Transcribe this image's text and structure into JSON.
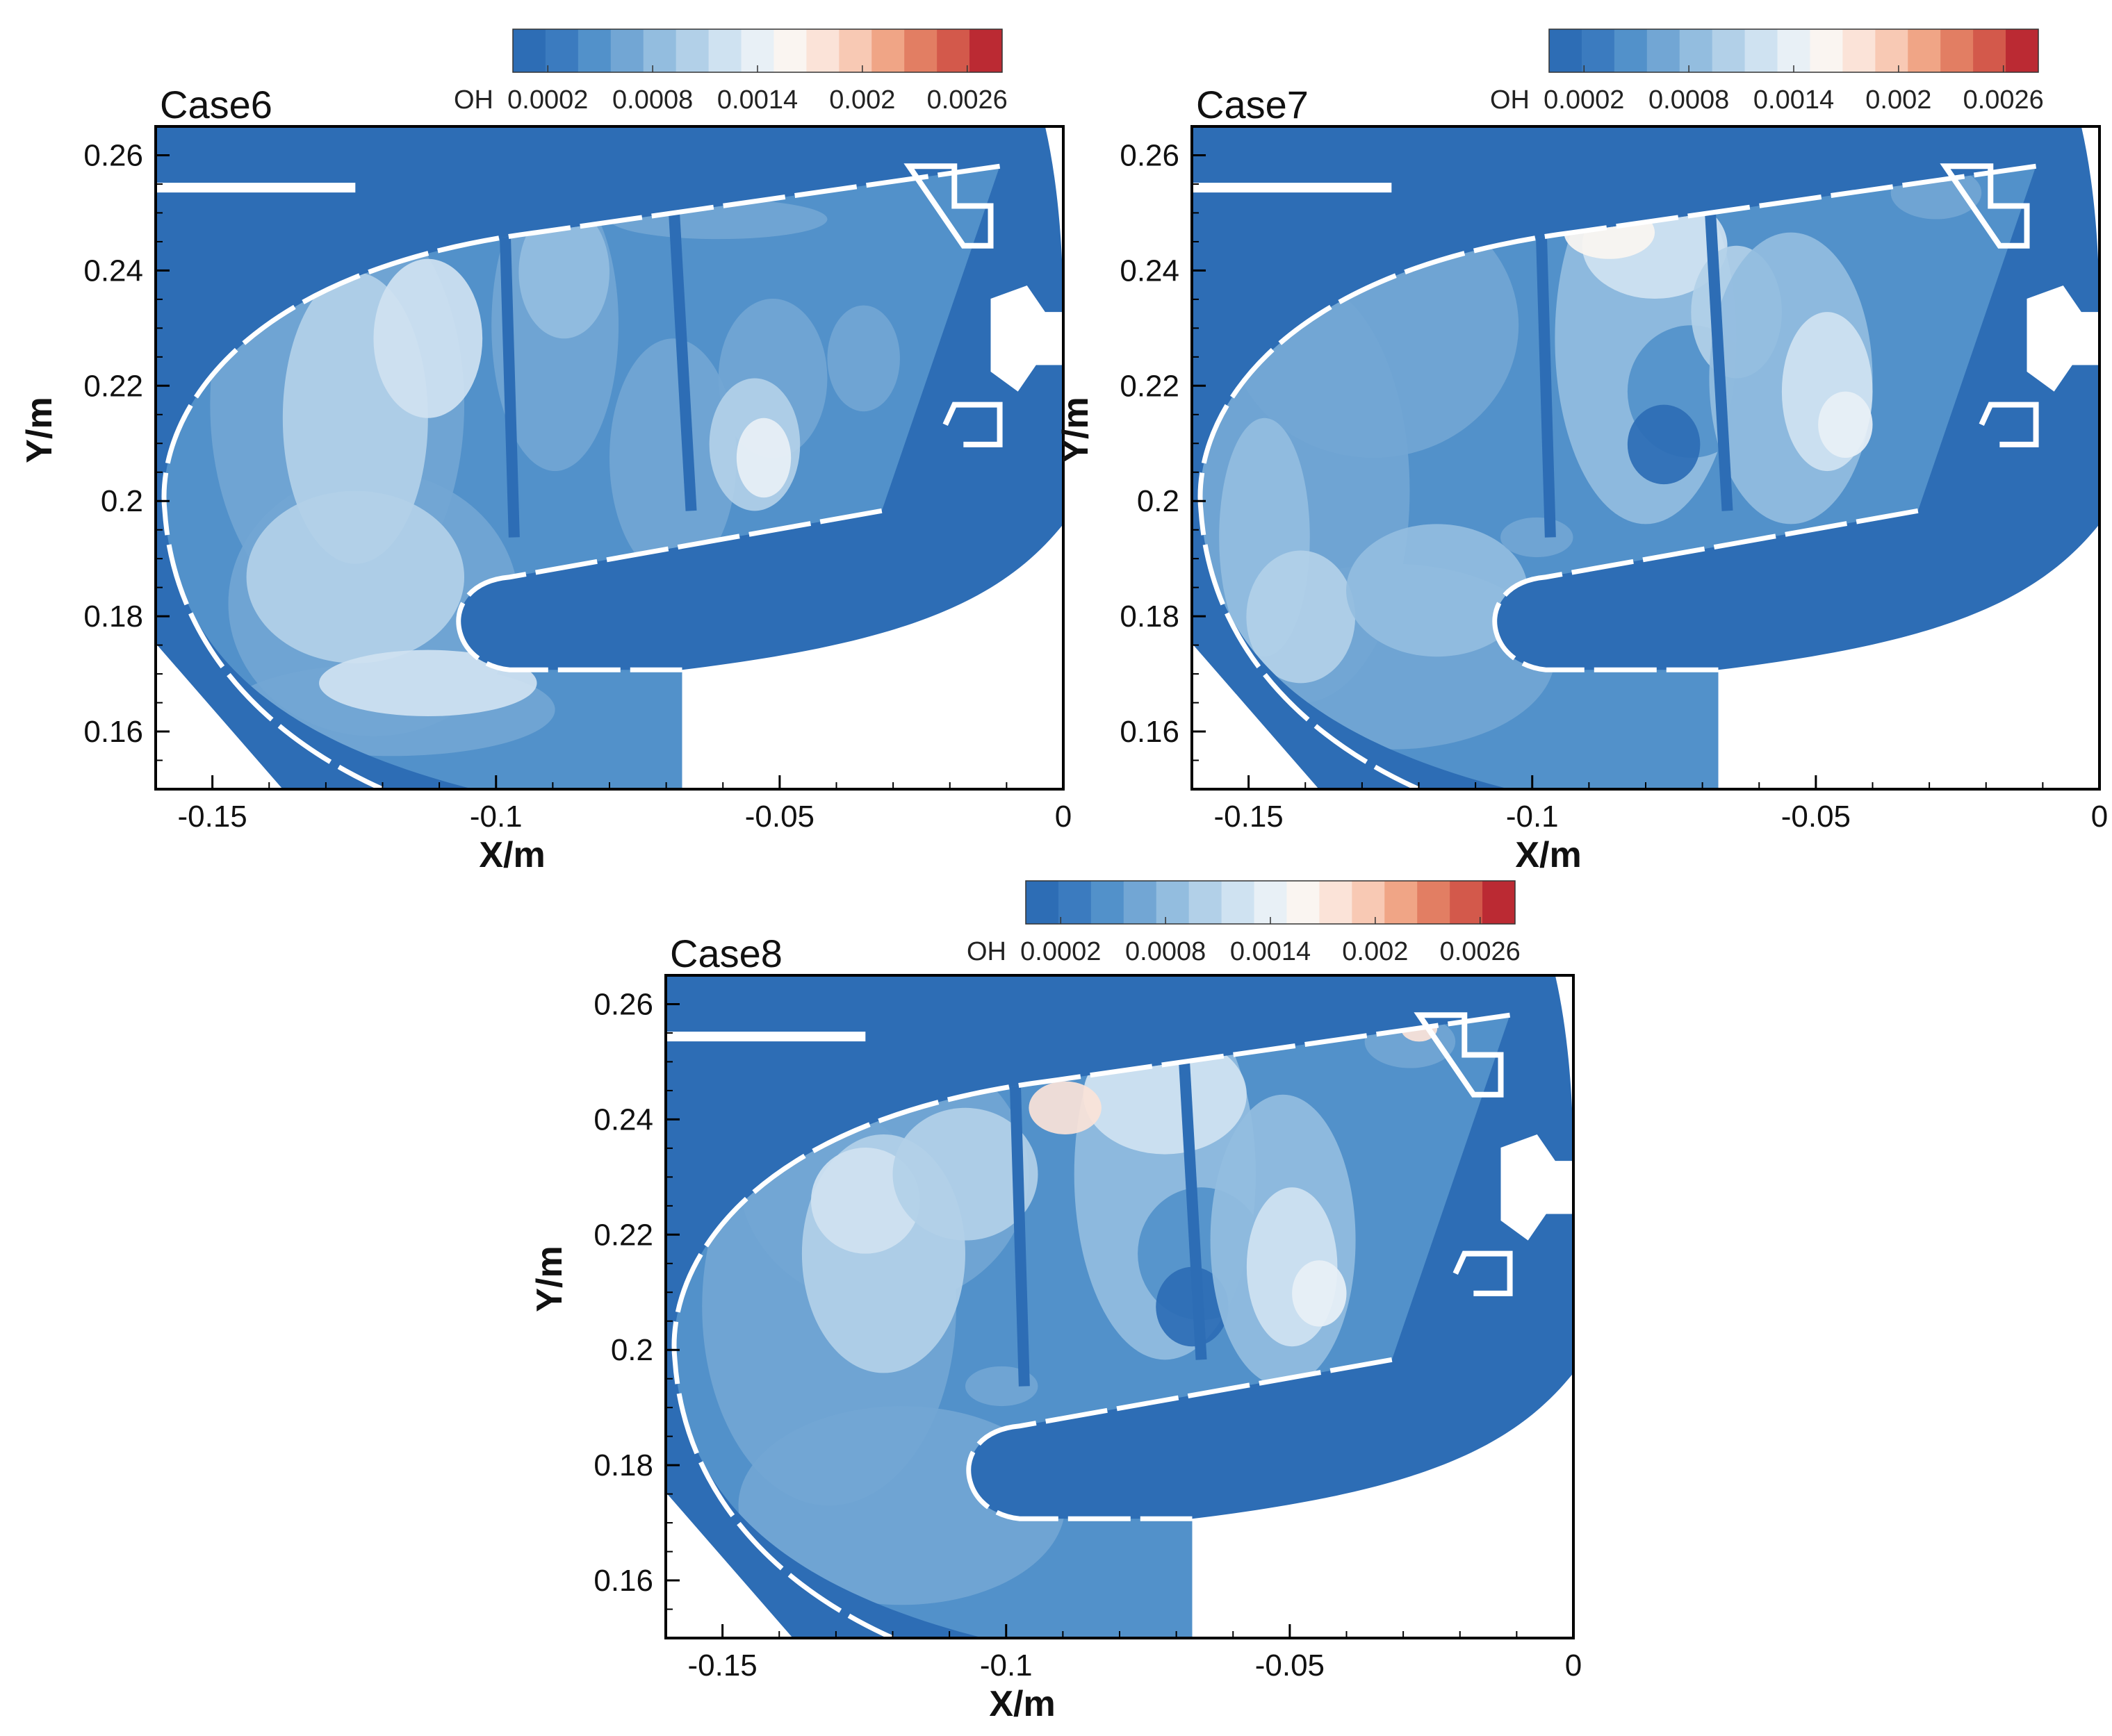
{
  "colors": {
    "colormap": [
      "#2d6db5",
      "#3b7bbf",
      "#5291ca",
      "#72a6d4",
      "#93bddf",
      "#b2d0e8",
      "#cfe2f1",
      "#e8f0f6",
      "#faf5f1",
      "#fbe3d8",
      "#f8c9b4",
      "#f0a586",
      "#e27e63",
      "#d3594b",
      "#bb2a33"
    ],
    "background": "#2d6db5",
    "wall": "#ffffff",
    "frame": "#000000"
  },
  "chart_data": [
    {
      "type": "heatmap",
      "title": "Case6",
      "legend_label": "OH",
      "legend_ticks": [
        "0.0002",
        "0.0008",
        "0.0014",
        "0.002",
        "0.0026"
      ],
      "legend_range": [
        0,
        0.0028
      ],
      "xlabel": "X/m",
      "ylabel": "Y/m",
      "xlim": [
        -0.16,
        0
      ],
      "ylim": [
        0.15,
        0.265
      ],
      "xticks": [
        "-0.15",
        "-0.1",
        "-0.05",
        "0"
      ],
      "yticks": [
        "0.16",
        "0.18",
        "0.2",
        "0.22",
        "0.24",
        "0.26"
      ]
    },
    {
      "type": "heatmap",
      "title": "Case7",
      "legend_label": "OH",
      "legend_ticks": [
        "0.0002",
        "0.0008",
        "0.0014",
        "0.002",
        "0.0026"
      ],
      "legend_range": [
        0,
        0.0028
      ],
      "xlabel": "X/m",
      "ylabel": "Y/m",
      "xlim": [
        -0.16,
        0
      ],
      "ylim": [
        0.15,
        0.265
      ],
      "xticks": [
        "-0.15",
        "-0.1",
        "-0.05",
        "0"
      ],
      "yticks": [
        "0.16",
        "0.18",
        "0.2",
        "0.22",
        "0.24",
        "0.26"
      ]
    },
    {
      "type": "heatmap",
      "title": "Case8",
      "legend_label": "OH",
      "legend_ticks": [
        "0.0002",
        "0.0008",
        "0.0014",
        "0.002",
        "0.0026"
      ],
      "legend_range": [
        0,
        0.0028
      ],
      "xlabel": "X/m",
      "ylabel": "Y/m",
      "xlim": [
        -0.16,
        0
      ],
      "ylim": [
        0.15,
        0.265
      ],
      "xticks": [
        "-0.15",
        "-0.1",
        "-0.05",
        "0"
      ],
      "yticks": [
        "0.16",
        "0.18",
        "0.2",
        "0.22",
        "0.24",
        "0.26"
      ]
    }
  ]
}
